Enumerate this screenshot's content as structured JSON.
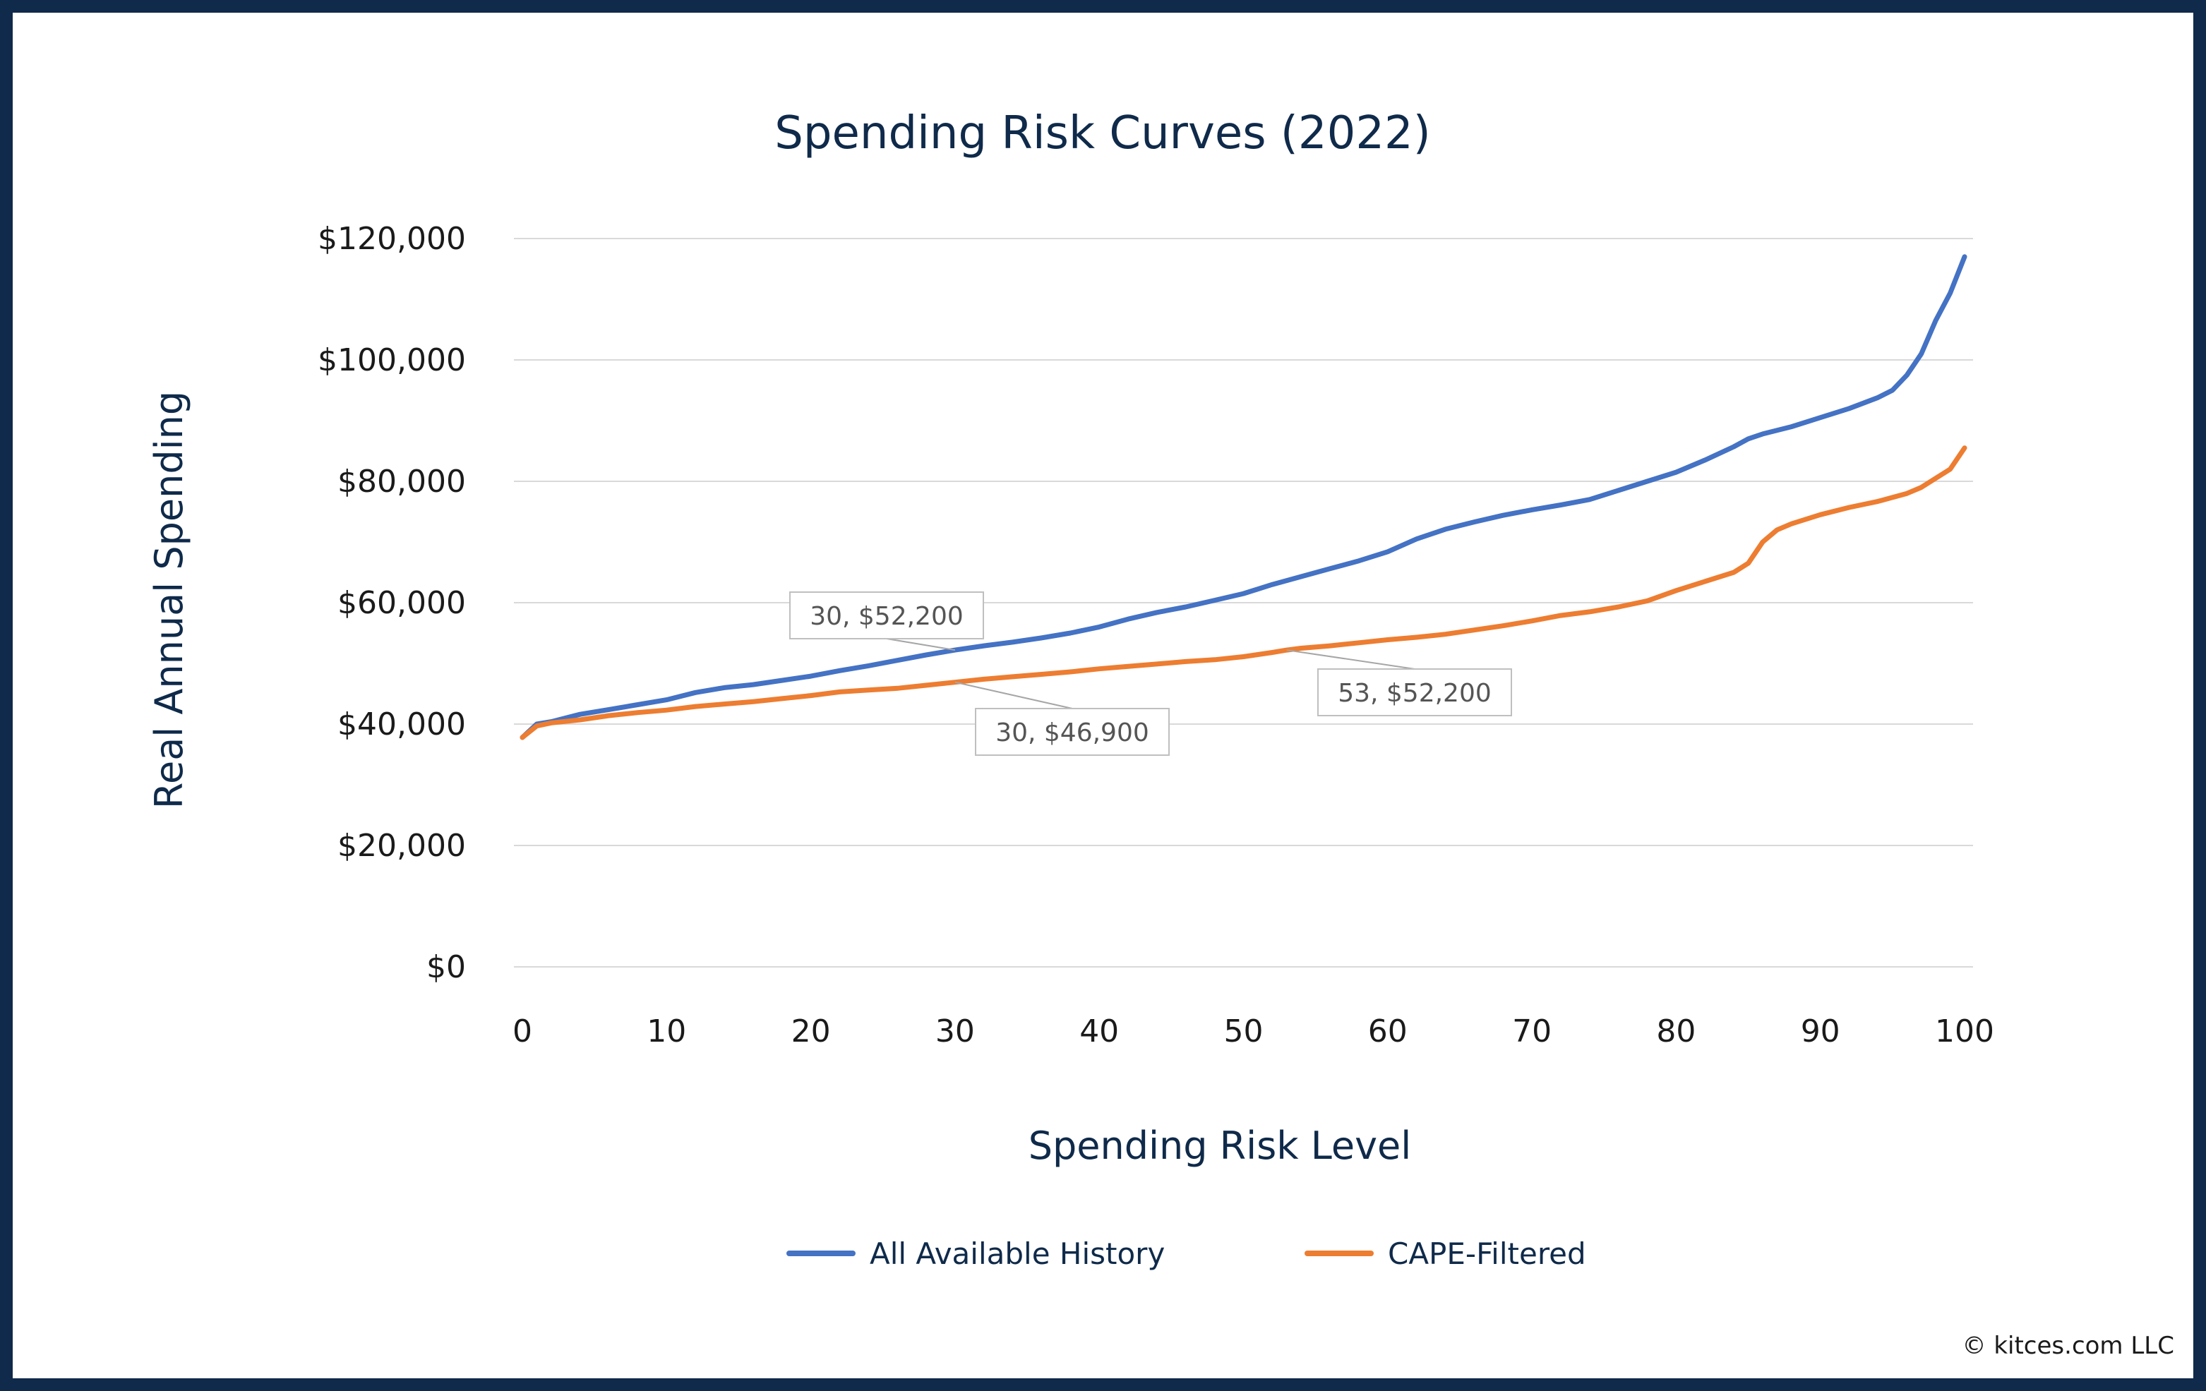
{
  "copyright": "© kitces.com LLC",
  "chart_data": {
    "type": "line",
    "title": "Spending Risk Curves (2022)",
    "xlabel": "Spending Risk Level",
    "ylabel": "Real Annual Spending",
    "xlim": [
      0,
      100
    ],
    "ylim": [
      0,
      120000
    ],
    "x_ticks": [
      "0",
      "10",
      "20",
      "30",
      "40",
      "50",
      "60",
      "70",
      "80",
      "90",
      "100"
    ],
    "y_ticks": [
      "$0",
      "$20,000",
      "$40,000",
      "$60,000",
      "$80,000",
      "$100,000",
      "$120,000"
    ],
    "grid": "horizontal",
    "legend": "bottom",
    "colors": {
      "all": "#4472c4",
      "cape": "#ed7d31"
    },
    "series": [
      {
        "name": "All Available History",
        "color": "#4472c4",
        "x": [
          0,
          1,
          2,
          4,
          6,
          8,
          10,
          12,
          14,
          16,
          18,
          20,
          22,
          24,
          26,
          28,
          30,
          32,
          34,
          36,
          38,
          40,
          42,
          44,
          46,
          48,
          50,
          52,
          54,
          56,
          58,
          60,
          62,
          64,
          66,
          68,
          70,
          72,
          74,
          76,
          78,
          80,
          82,
          84,
          85,
          86,
          88,
          90,
          92,
          94,
          95,
          96,
          97,
          98,
          99,
          100
        ],
        "values": [
          37800,
          40000,
          40400,
          41600,
          42400,
          43200,
          44000,
          45200,
          46000,
          46500,
          47200,
          47900,
          48800,
          49600,
          50500,
          51400,
          52200,
          52900,
          53500,
          54200,
          55000,
          56000,
          57300,
          58400,
          59300,
          60400,
          61500,
          63000,
          64300,
          65600,
          66900,
          68400,
          70500,
          72100,
          73300,
          74400,
          75300,
          76100,
          77000,
          78500,
          80000,
          81500,
          83500,
          85700,
          87000,
          87800,
          89000,
          90500,
          92000,
          93800,
          95000,
          97500,
          101000,
          106500,
          111000,
          117000
        ]
      },
      {
        "name": "CAPE-Filtered",
        "color": "#ed7d31",
        "x": [
          0,
          1,
          2,
          4,
          6,
          8,
          10,
          12,
          14,
          16,
          18,
          20,
          22,
          24,
          26,
          28,
          30,
          32,
          34,
          36,
          38,
          40,
          42,
          44,
          46,
          48,
          50,
          52,
          53,
          54,
          56,
          58,
          60,
          62,
          64,
          66,
          68,
          70,
          72,
          74,
          76,
          78,
          80,
          82,
          84,
          85,
          86,
          87,
          88,
          90,
          92,
          94,
          96,
          97,
          98,
          99,
          100
        ],
        "values": [
          37800,
          39700,
          40200,
          40700,
          41400,
          41900,
          42300,
          42900,
          43300,
          43700,
          44200,
          44700,
          45300,
          45600,
          45900,
          46400,
          46900,
          47400,
          47800,
          48200,
          48600,
          49100,
          49500,
          49900,
          50300,
          50600,
          51100,
          51800,
          52200,
          52500,
          52900,
          53400,
          53900,
          54300,
          54800,
          55500,
          56200,
          57000,
          57900,
          58500,
          59300,
          60300,
          62000,
          63500,
          65000,
          66500,
          70000,
          72000,
          73000,
          74500,
          75700,
          76700,
          78000,
          79000,
          80500,
          82000,
          85500
        ]
      }
    ],
    "annotations": [
      {
        "series": "All Available History",
        "x": 30,
        "y": 52200,
        "text": "30, $52,200"
      },
      {
        "series": "CAPE-Filtered",
        "x": 30,
        "y": 46900,
        "text": "30, $46,900"
      },
      {
        "series": "CAPE-Filtered",
        "x": 53,
        "y": 52200,
        "text": "53, $52,200"
      }
    ]
  }
}
